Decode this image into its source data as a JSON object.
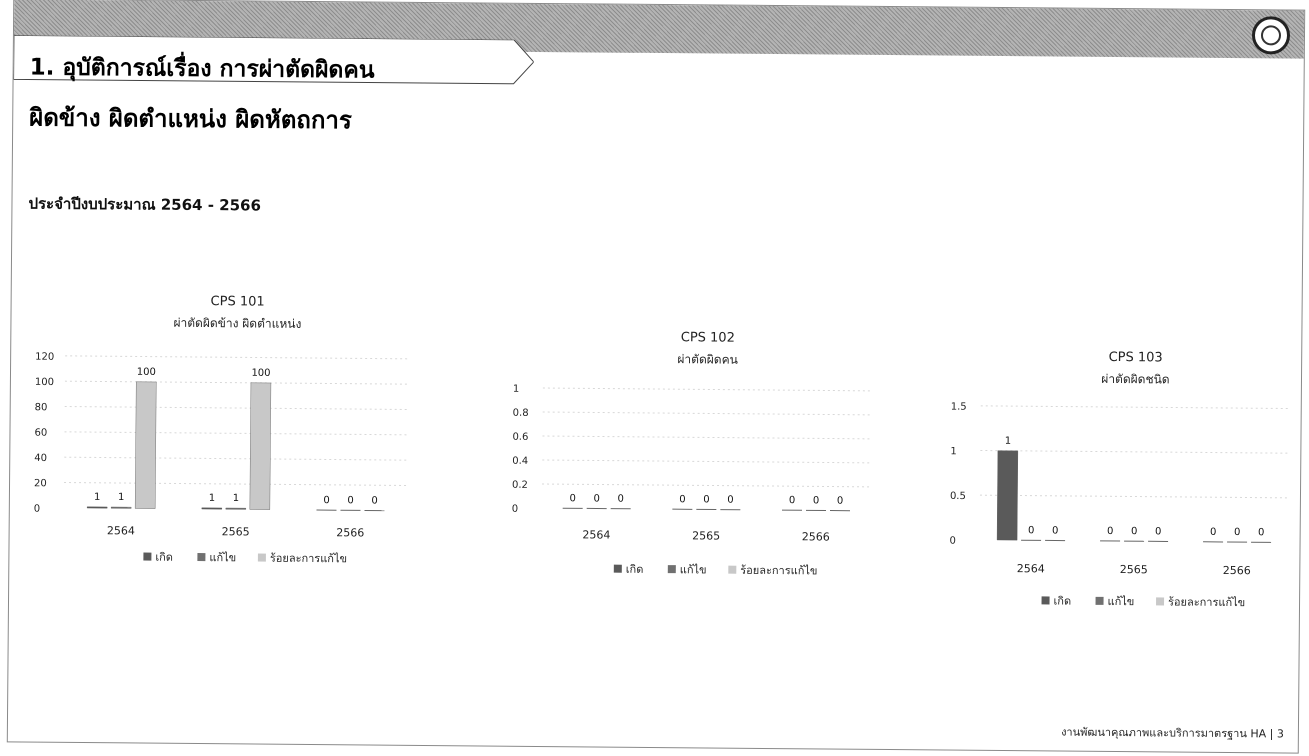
{
  "slide": {
    "title_line1": "1. อุบัติการณ์เรื่อง การผ่าตัดผิดคน",
    "title_line2": "ผิดข้าง ผิดตำแหน่ง ผิดหัตถการ",
    "subtitle": "ประจำปีงบประมาณ 2564 - 2566",
    "footer": "งานพัฒนาคุณภาพและบริการมาตรฐาน HA | 3",
    "logo_icon": "caduceus-seal-icon"
  },
  "colors": {
    "banner": "#9e9e9e",
    "series": [
      "#5a5a5a",
      "#707070",
      "#c8c8c8"
    ]
  },
  "chart_data": [
    {
      "type": "bar",
      "title": "CPS 101",
      "subtitle": "ผ่าตัดผิดข้าง ผิดตำแหน่ง",
      "categories": [
        "2564",
        "2565",
        "2566"
      ],
      "series": [
        {
          "name": "เกิด",
          "values": [
            1,
            1,
            0
          ]
        },
        {
          "name": "แก้ไข",
          "values": [
            1,
            1,
            0
          ]
        },
        {
          "name": "ร้อยละการแก้ไข",
          "values": [
            100,
            100,
            0
          ]
        }
      ],
      "ylim": [
        0,
        120
      ],
      "yticks": [
        "0",
        "20",
        "40",
        "60",
        "80",
        "100",
        "120"
      ],
      "grid": true,
      "legend_position": "bottom"
    },
    {
      "type": "bar",
      "title": "CPS 102",
      "subtitle": "ผ่าตัดผิดคน",
      "categories": [
        "2564",
        "2565",
        "2566"
      ],
      "series": [
        {
          "name": "เกิด",
          "values": [
            0,
            0,
            0
          ]
        },
        {
          "name": "แก้ไข",
          "values": [
            0,
            0,
            0
          ]
        },
        {
          "name": "ร้อยละการแก้ไข",
          "values": [
            0,
            0,
            0
          ]
        }
      ],
      "ylim": [
        0,
        1
      ],
      "yticks": [
        "0",
        "0.2",
        "0.4",
        "0.6",
        "0.8",
        "1"
      ],
      "grid": true,
      "legend_position": "bottom"
    },
    {
      "type": "bar",
      "title": "CPS 103",
      "subtitle": "ผ่าตัดผิดชนิด",
      "categories": [
        "2564",
        "2565",
        "2566"
      ],
      "series": [
        {
          "name": "เกิด",
          "values": [
            1,
            0,
            0
          ]
        },
        {
          "name": "แก้ไข",
          "values": [
            0,
            0,
            0
          ]
        },
        {
          "name": "ร้อยละการแก้ไข",
          "values": [
            0,
            0,
            0
          ]
        }
      ],
      "ylim": [
        0,
        1.5
      ],
      "yticks": [
        "0",
        "0.5",
        "1",
        "1.5"
      ],
      "grid": true,
      "legend_position": "bottom"
    }
  ]
}
